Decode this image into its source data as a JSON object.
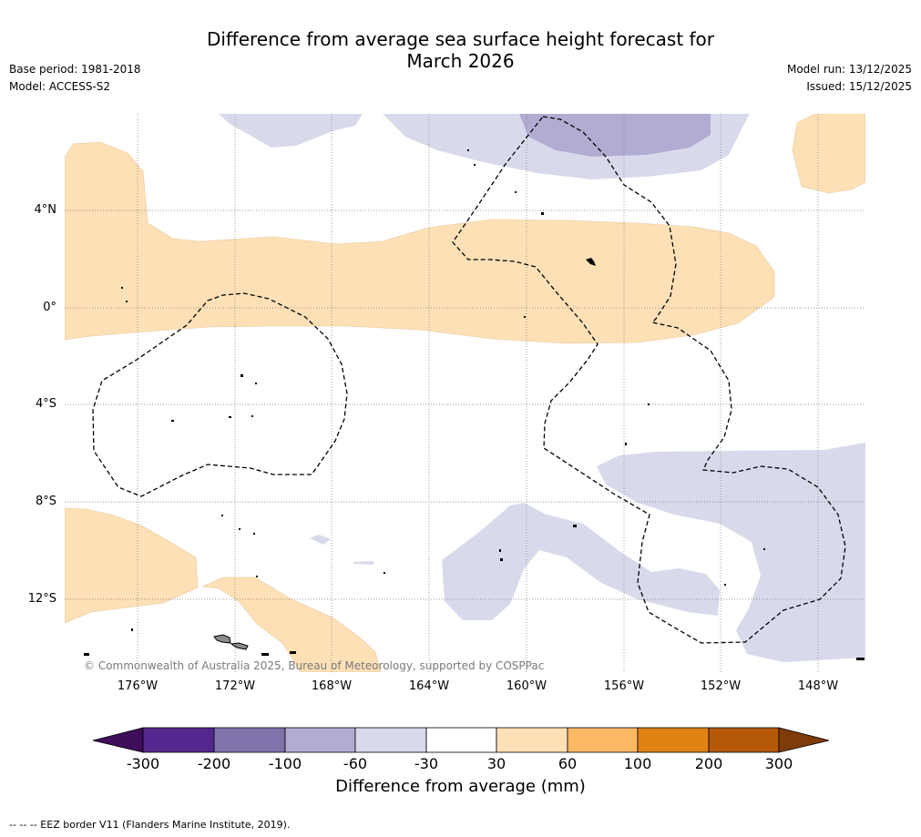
{
  "title": {
    "line1": "Difference from average sea surface height forecast for",
    "line2": "March 2026"
  },
  "meta": {
    "base_period": "Base period: 1981-2018",
    "model": "Model: ACCESS-S2",
    "model_run": "Model run: 13/12/2025",
    "issued": "Issued: 15/12/2025"
  },
  "map": {
    "lat_ticks": [
      "4°N",
      "0°",
      "4°S",
      "8°S",
      "12°S"
    ],
    "lon_ticks": [
      "176°W",
      "172°W",
      "168°W",
      "164°W",
      "160°W",
      "156°W",
      "152°W",
      "148°W"
    ],
    "copyright": "© Commonwealth of Australia 2025, Bureau of Meteorology, supported by COSPPac"
  },
  "colorbar": {
    "labels": [
      "-300",
      "-200",
      "-100",
      "-60",
      "-30",
      "30",
      "60",
      "100",
      "200",
      "300"
    ],
    "colors": [
      "#3f0d5a",
      "#54278f",
      "#8073ac",
      "#b2abd2",
      "#d8daeb",
      "#ffffff",
      "#fee0b6",
      "#fdb863",
      "#e08214",
      "#b35806",
      "#7f3b08"
    ],
    "title": "Difference from average (mm)"
  },
  "footer": {
    "eez_note": "--  --  -- EEZ border V11 (Flanders Marine Institute, 2019)."
  }
}
